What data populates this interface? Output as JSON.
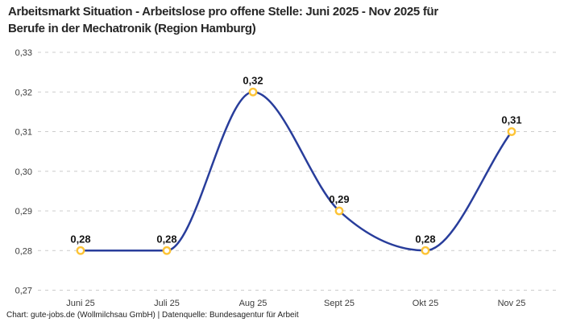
{
  "header": {
    "title_line1": "Arbeitsmarkt Situation - Arbeitslose pro offene Stelle: Juni 2025 - Nov 2025 für",
    "title_line2": "Berufe in der Mechatronik (Region Hamburg)"
  },
  "footer": {
    "credit": "Chart: gute-jobs.de (Wollmilchsau GmbH) | Datenquelle: Bundesagentur für Arbeit"
  },
  "chart_data": {
    "type": "line",
    "title": "Arbeitsmarkt Situation - Arbeitslose pro offene Stelle: Juni 2025 - Nov 2025 für Berufe in der Mechatronik (Region Hamburg)",
    "xlabel": "",
    "ylabel": "",
    "categories": [
      "Juni 25",
      "Juli 25",
      "Aug 25",
      "Sept 25",
      "Okt 25",
      "Nov 25"
    ],
    "values": [
      0.28,
      0.28,
      0.32,
      0.29,
      0.28,
      0.31
    ],
    "value_labels": [
      "0,28",
      "0,28",
      "0,32",
      "0,29",
      "0,28",
      "0,31"
    ],
    "ylim": [
      0.27,
      0.33
    ],
    "y_ticks": [
      0.33,
      0.32,
      0.31,
      0.3,
      0.29,
      0.28,
      0.27
    ],
    "y_tick_labels": [
      "0,33",
      "0,32",
      "0,31",
      "0,30",
      "0,29",
      "0,28",
      "0,27"
    ],
    "grid": "horizontal-dashed",
    "legend": "none",
    "curve": "monotone",
    "colors": {
      "line": "#283d9b",
      "marker_stroke": "#fdc437",
      "marker_fill": "#ffffff",
      "gridline": "#cccccc",
      "tick_text": "#3b3b3b",
      "value_label_text": "#141414"
    }
  }
}
